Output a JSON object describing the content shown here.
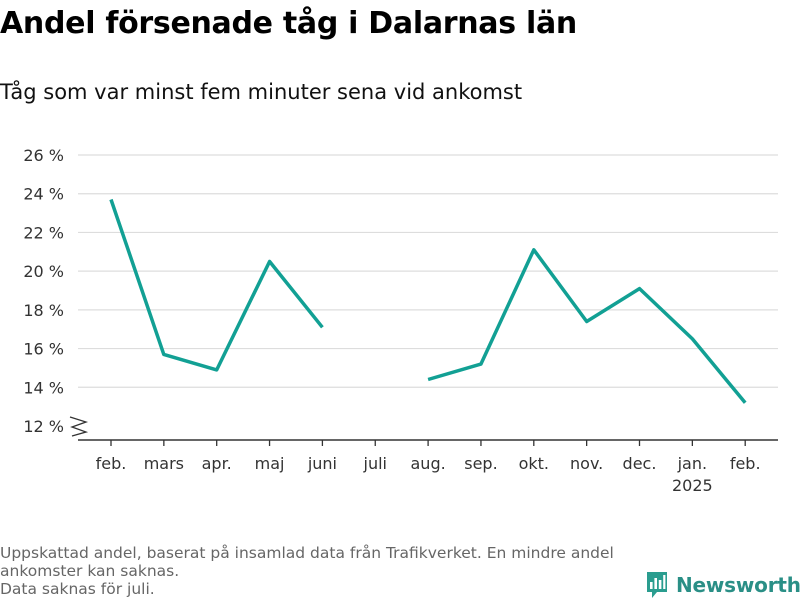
{
  "title": "Andel försenade tåg i Dalarnas län",
  "subtitle": "Tåg som var minst fem minuter sena vid ankomst",
  "footnote_lines": [
    "Uppskattad andel, baserat på insamlad data från Trafikverket. En mindre andel",
    "ankomster kan saknas.",
    "Data saknas för juli."
  ],
  "brand": {
    "name": "Newsworthy",
    "color": "#2a9d8f"
  },
  "colors": {
    "line": "#12a094",
    "grid": "#dddddd",
    "axis": "#333333"
  },
  "chart_data": {
    "type": "line",
    "categories": [
      "feb.",
      "mars",
      "apr.",
      "maj",
      "juni",
      "juli",
      "aug.",
      "sep.",
      "okt.",
      "nov.",
      "dec.",
      "jan.",
      "feb."
    ],
    "category_sublabels": [
      "",
      "",
      "",
      "",
      "",
      "",
      "",
      "",
      "",
      "",
      "",
      "2025",
      ""
    ],
    "series": [
      {
        "values": [
          23.7,
          15.7,
          14.9,
          20.5,
          17.1,
          null,
          14.4,
          15.2,
          21.1,
          17.4,
          19.1,
          16.5,
          13.2
        ]
      }
    ],
    "ylim": [
      12,
      26
    ],
    "yticks": [
      12,
      14,
      16,
      18,
      20,
      22,
      24,
      26
    ],
    "ytick_labels": [
      "12 %",
      "14 %",
      "16 %",
      "18 %",
      "20 %",
      "22 %",
      "24 %",
      "26 %"
    ],
    "grid": true,
    "y_axis_break": true
  }
}
